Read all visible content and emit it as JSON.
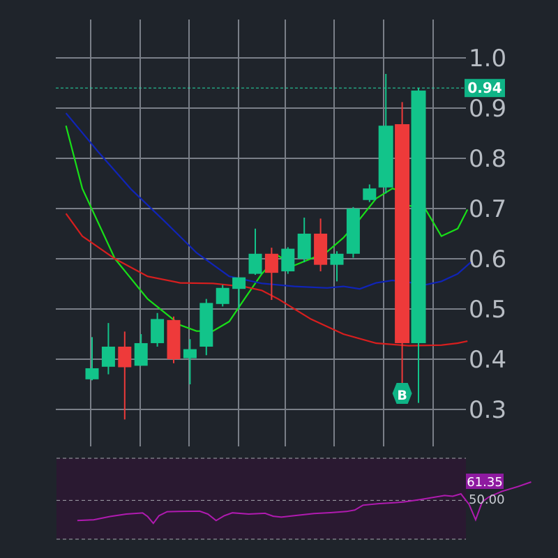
{
  "chart_data": {
    "type": "candlestick",
    "y_ticks": [
      "1.0",
      "0.9",
      "0.8",
      "0.7",
      "0.6",
      "0.5",
      "0.4",
      "0.3"
    ],
    "ylim": [
      0.28,
      1.04
    ],
    "current_price": 0.94,
    "current_price_label": "0.94",
    "candles": [
      {
        "o": 0.36,
        "h": 0.444,
        "l": 0.358,
        "c": 0.382
      },
      {
        "o": 0.385,
        "h": 0.472,
        "l": 0.37,
        "c": 0.425
      },
      {
        "o": 0.425,
        "h": 0.455,
        "l": 0.28,
        "c": 0.384
      },
      {
        "o": 0.387,
        "h": 0.45,
        "l": 0.387,
        "c": 0.432
      },
      {
        "o": 0.432,
        "h": 0.492,
        "l": 0.425,
        "c": 0.48
      },
      {
        "o": 0.478,
        "h": 0.485,
        "l": 0.392,
        "c": 0.4
      },
      {
        "o": 0.402,
        "h": 0.44,
        "l": 0.35,
        "c": 0.42
      },
      {
        "o": 0.425,
        "h": 0.52,
        "l": 0.408,
        "c": 0.512
      },
      {
        "o": 0.51,
        "h": 0.548,
        "l": 0.505,
        "c": 0.542
      },
      {
        "o": 0.54,
        "h": 0.56,
        "l": 0.5,
        "c": 0.563
      },
      {
        "o": 0.57,
        "h": 0.66,
        "l": 0.568,
        "c": 0.61
      },
      {
        "o": 0.61,
        "h": 0.622,
        "l": 0.518,
        "c": 0.572
      },
      {
        "o": 0.575,
        "h": 0.623,
        "l": 0.57,
        "c": 0.62
      },
      {
        "o": 0.6,
        "h": 0.682,
        "l": 0.593,
        "c": 0.65
      },
      {
        "o": 0.65,
        "h": 0.68,
        "l": 0.575,
        "c": 0.588
      },
      {
        "o": 0.588,
        "h": 0.615,
        "l": 0.555,
        "c": 0.61
      },
      {
        "o": 0.61,
        "h": 0.703,
        "l": 0.602,
        "c": 0.7
      },
      {
        "o": 0.717,
        "h": 0.748,
        "l": 0.713,
        "c": 0.74
      },
      {
        "o": 0.742,
        "h": 0.968,
        "l": 0.73,
        "c": 0.865
      },
      {
        "o": 0.868,
        "h": 0.912,
        "l": 0.34,
        "c": 0.432
      },
      {
        "o": 0.432,
        "h": 0.94,
        "l": 0.313,
        "c": 0.935
      }
    ],
    "series": [
      {
        "name": "",
        "color": "#18e018",
        "points": [
          [
            -1.6,
            0.865
          ],
          [
            -0.6,
            0.74
          ],
          [
            1.4,
            0.6
          ],
          [
            3.4,
            0.52
          ],
          [
            5.4,
            0.468
          ],
          [
            6.4,
            0.456
          ],
          [
            7.4,
            0.456
          ],
          [
            8.4,
            0.475
          ],
          [
            9.4,
            0.523
          ],
          [
            10.4,
            0.57
          ],
          [
            11.4,
            0.606
          ],
          [
            12.4,
            0.587
          ],
          [
            13.4,
            0.6
          ],
          [
            14.4,
            0.614
          ],
          [
            15.4,
            0.642
          ],
          [
            16.4,
            0.679
          ],
          [
            17.4,
            0.72
          ],
          [
            18.4,
            0.74
          ],
          [
            18.9,
            0.735
          ],
          [
            19.4,
            0.706
          ],
          [
            20.4,
            0.7
          ],
          [
            21.4,
            0.645
          ],
          [
            22.4,
            0.66
          ],
          [
            23.0,
            0.698
          ]
        ]
      },
      {
        "name": "",
        "color": "#1024b8",
        "points": [
          [
            -1.6,
            0.89
          ],
          [
            0.4,
            0.812
          ],
          [
            2.4,
            0.738
          ],
          [
            4.4,
            0.676
          ],
          [
            6.4,
            0.612
          ],
          [
            8.4,
            0.565
          ],
          [
            10.4,
            0.551
          ],
          [
            12.4,
            0.545
          ],
          [
            14.4,
            0.542
          ],
          [
            15.4,
            0.545
          ],
          [
            16.4,
            0.54
          ],
          [
            17.4,
            0.552
          ],
          [
            18.4,
            0.557
          ],
          [
            19.4,
            0.553
          ],
          [
            20.4,
            0.548
          ],
          [
            21.4,
            0.555
          ],
          [
            22.4,
            0.57
          ],
          [
            23.2,
            0.593
          ]
        ]
      },
      {
        "name": "",
        "color": "#d81e1e",
        "points": [
          [
            -1.6,
            0.69
          ],
          [
            -0.6,
            0.645
          ],
          [
            1.4,
            0.6
          ],
          [
            3.4,
            0.565
          ],
          [
            5.4,
            0.552
          ],
          [
            7.4,
            0.551
          ],
          [
            9.4,
            0.544
          ],
          [
            10.4,
            0.537
          ],
          [
            11.4,
            0.52
          ],
          [
            13.4,
            0.48
          ],
          [
            15.4,
            0.45
          ],
          [
            17.4,
            0.432
          ],
          [
            19.4,
            0.427
          ],
          [
            21.4,
            0.428
          ],
          [
            22.4,
            0.432
          ],
          [
            23.0,
            0.436
          ]
        ]
      }
    ],
    "buy_marker": {
      "index": 19,
      "label": "B"
    },
    "rsi": {
      "current": 61.35,
      "current_label": "61.35",
      "level_label": "50.00",
      "ylim": [
        26,
        76
      ],
      "levels": [
        76,
        50,
        26
      ],
      "points": [
        [
          -0.9,
          37.5
        ],
        [
          0.1,
          38.0
        ],
        [
          1.1,
          40.0
        ],
        [
          2.1,
          41.5
        ],
        [
          3.1,
          42.2
        ],
        [
          3.4,
          40.0
        ],
        [
          3.75,
          35.8
        ],
        [
          4.1,
          40.5
        ],
        [
          4.6,
          43.0
        ],
        [
          5.6,
          43.2
        ],
        [
          6.6,
          43.3
        ],
        [
          7.1,
          41.5
        ],
        [
          7.6,
          37.5
        ],
        [
          8.1,
          40.5
        ],
        [
          8.6,
          42.3
        ],
        [
          9.6,
          41.5
        ],
        [
          10.6,
          42.0
        ],
        [
          11.1,
          40.2
        ],
        [
          11.6,
          39.6
        ],
        [
          12.6,
          40.8
        ],
        [
          13.6,
          41.8
        ],
        [
          14.6,
          42.4
        ],
        [
          15.6,
          43.1
        ],
        [
          16.1,
          44.0
        ],
        [
          16.6,
          47.0
        ],
        [
          17.6,
          48.0
        ],
        [
          18.6,
          48.6
        ],
        [
          19.1,
          49.0
        ],
        [
          20.1,
          50.5
        ],
        [
          21.6,
          53.0
        ],
        [
          22.1,
          52.5
        ],
        [
          22.6,
          54.0
        ],
        [
          23.1,
          47.5
        ],
        [
          23.5,
          38.0
        ],
        [
          23.9,
          49.0
        ],
        [
          24.3,
          52.0
        ],
        [
          25.1,
          55.5
        ],
        [
          26.1,
          58.5
        ],
        [
          26.9,
          61.35
        ]
      ]
    }
  }
}
